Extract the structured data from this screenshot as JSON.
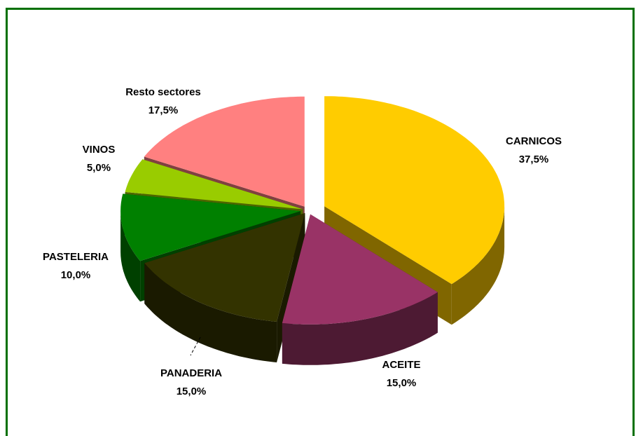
{
  "chart_data": {
    "type": "pie3d",
    "categories": [
      "CARNICOS",
      "ACEITE",
      "PANADERIA",
      "PASTELERIA",
      "VINOS",
      "Resto sectores"
    ],
    "values": [
      37.5,
      15,
      15,
      10,
      5,
      17.5
    ],
    "value_labels": [
      "37,5%",
      "15,0%",
      "15,0%",
      "10,0%",
      "5,0%",
      "17,5%"
    ],
    "colors": [
      "#ffcc00",
      "#993366",
      "#333300",
      "#008000",
      "#99cc00",
      "#ff8080"
    ]
  }
}
